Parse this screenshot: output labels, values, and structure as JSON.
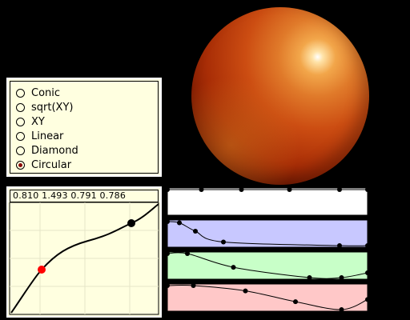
{
  "colors": {
    "background": "#000000",
    "panel": "#ffffe0",
    "selected_point": "#ff0000",
    "channel_white": "#ffffff",
    "channel_blue": "#c8c8ff",
    "channel_green": "#c8ffc8",
    "channel_red": "#ffc8c8"
  },
  "gradient_types": {
    "selected": "Circular",
    "options": [
      "Conic",
      "sqrt(XY)",
      "XY",
      "Linear",
      "Diamond",
      "Circular"
    ]
  },
  "curve": {
    "values_text": "0.810  1.493  0.791  0.786"
  },
  "channels": [
    {
      "name": "white",
      "points": [
        [
          0,
          1
        ],
        [
          0.17,
          1
        ],
        [
          0.37,
          1
        ],
        [
          0.61,
          1
        ],
        [
          0.86,
          1
        ],
        [
          1,
          1
        ]
      ]
    },
    {
      "name": "blue",
      "points": [
        [
          0,
          1
        ],
        [
          0.06,
          0.95
        ],
        [
          0.14,
          0.6
        ],
        [
          0.28,
          0.15
        ],
        [
          0.86,
          0
        ],
        [
          1,
          0
        ]
      ]
    },
    {
      "name": "green",
      "points": [
        [
          0,
          1
        ],
        [
          0.1,
          1
        ],
        [
          0.33,
          0.43
        ],
        [
          0.71,
          0
        ],
        [
          0.87,
          0
        ],
        [
          1,
          0.2
        ]
      ]
    },
    {
      "name": "red",
      "points": [
        [
          0,
          1
        ],
        [
          0.13,
          1
        ],
        [
          0.39,
          0.78
        ],
        [
          0.64,
          0.33
        ],
        [
          0.87,
          0
        ],
        [
          1,
          0.42
        ]
      ]
    }
  ]
}
